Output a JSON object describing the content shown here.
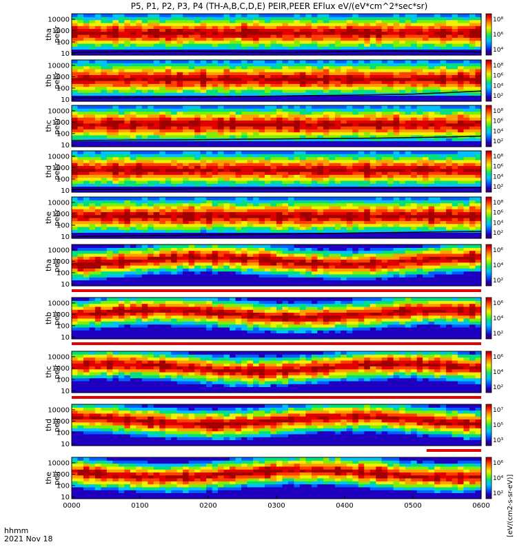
{
  "title": "P5, P1, P2, P3, P4 (TH-A,B,C,D,E) PEIR,PEER EFlux eV/(eV*cm^2*sec*sr)",
  "time_axis": {
    "label": "hhmm",
    "date": "2021 Nov 18",
    "ticks": [
      "0000",
      "0100",
      "0200",
      "0300",
      "0400",
      "0500",
      "0600"
    ]
  },
  "colorbar_unit": "[eV/(cm2-s-sr-eV)]",
  "colors": {
    "colormap": [
      "#3a0060",
      "#2000c0",
      "#0060ff",
      "#00c0ff",
      "#00e080",
      "#80f000",
      "#f0f000",
      "#ffa000",
      "#ff4000",
      "#e00000",
      "#a00000"
    ],
    "quality_bar": "#e00000"
  },
  "chart_data": {
    "type": "heatmap",
    "x_range_hours": [
      0,
      6
    ],
    "y_scale": "log",
    "y_range_eV": [
      7,
      30000
    ],
    "y_ticks": [
      "10000",
      "1000",
      "100",
      "10"
    ],
    "panels": [
      {
        "probe": "tha",
        "species": "peer",
        "cbar_labels": [
          "10⁸",
          "10⁶",
          "10⁴"
        ],
        "floor_curve": [
          12,
          13,
          14,
          15,
          14,
          13,
          12,
          13,
          14,
          16,
          15,
          14,
          13
        ]
      },
      {
        "probe": "thb",
        "species": "peer",
        "cbar_labels": [
          "10⁸",
          "10⁶",
          "10⁴",
          "10²"
        ],
        "floor_curve": [
          14,
          14,
          15,
          16,
          17,
          18,
          20,
          22,
          24,
          26,
          30,
          40,
          55
        ]
      },
      {
        "probe": "thc",
        "species": "peer",
        "cbar_labels": [
          "10⁸",
          "10⁶",
          "10⁴",
          "10²"
        ],
        "floor_curve": [
          25,
          26,
          27,
          28,
          30,
          32,
          34,
          36,
          38,
          40,
          45,
          50,
          60
        ]
      },
      {
        "probe": "thd",
        "species": "peer",
        "cbar_labels": [
          "10⁸",
          "10⁶",
          "10⁴",
          "10²"
        ],
        "floor_curve": [
          12,
          12,
          13,
          13,
          14,
          14,
          15,
          15,
          16,
          16,
          17,
          17,
          18
        ]
      },
      {
        "probe": "the",
        "species": "peer",
        "cbar_labels": [
          "10⁸",
          "10⁶",
          "10⁴",
          "10²"
        ],
        "floor_curve": [
          10,
          11,
          12,
          13,
          14,
          15,
          16,
          18,
          20,
          22,
          24,
          26,
          28
        ]
      },
      {
        "probe": "tha",
        "species": "peir",
        "cbar_labels": [
          "10⁶",
          "10⁴",
          "10²"
        ]
      },
      {
        "probe": "thb",
        "species": "peir",
        "cbar_labels": [
          "10⁶",
          "10⁴",
          "10²"
        ]
      },
      {
        "probe": "thc",
        "species": "peir",
        "cbar_labels": [
          "10⁶",
          "10⁴",
          "10²"
        ]
      },
      {
        "probe": "thd",
        "species": "peir",
        "cbar_labels": [
          "10⁷",
          "10⁵",
          "10³"
        ]
      },
      {
        "probe": "the",
        "species": "peir",
        "cbar_labels": [
          "10⁶",
          "10⁴",
          "10²"
        ]
      }
    ]
  }
}
